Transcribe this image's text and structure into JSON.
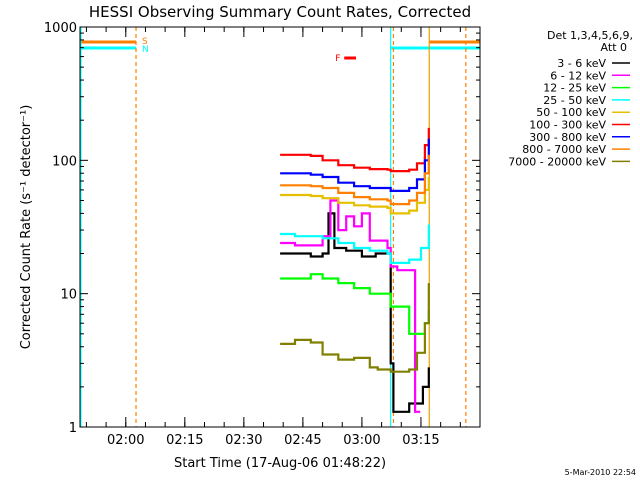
{
  "chart_data": {
    "type": "line",
    "title": "HESSI Observing Summary Count Rates, Corrected",
    "xlabel": "Start Time (17-Aug-06 01:48:22)",
    "ylabel": "Corrected Count Rate (s⁻¹ detector⁻¹)",
    "ylog": true,
    "ylim": [
      1,
      1000
    ],
    "xlim_minutes": [
      108.37,
      210.0
    ],
    "x_ticks": [
      {
        "value": 120,
        "label": "02:00"
      },
      {
        "value": 135,
        "label": "02:15"
      },
      {
        "value": 150,
        "label": "02:30"
      },
      {
        "value": 165,
        "label": "02:45"
      },
      {
        "value": 180,
        "label": "03:00"
      },
      {
        "value": 195,
        "label": "03:15"
      }
    ],
    "y_ticks": [
      {
        "value": 1,
        "label": "1"
      },
      {
        "value": 10,
        "label": "10"
      },
      {
        "value": 100,
        "label": "100"
      },
      {
        "value": 1000,
        "label": "1000"
      }
    ],
    "legend": {
      "title_lines": [
        "Det 1,3,4,5,6,9,",
        "Att 0"
      ],
      "placement": "right"
    },
    "series": [
      {
        "name": "3 - 6 keV",
        "color": "#000000",
        "x": [
          159.2,
          163,
          167,
          170,
          171.5,
          173,
          176,
          180,
          183.5,
          186.5,
          187.3,
          188,
          192,
          195.5,
          197
        ],
        "y": [
          20,
          20,
          19,
          20,
          40,
          22,
          21,
          19,
          20,
          20,
          3,
          1.3,
          1.5,
          2,
          2.8
        ]
      },
      {
        "name": "6 - 12 keV",
        "color": "#ff00ff",
        "x": [
          159.2,
          163,
          167,
          170,
          172,
          174,
          176,
          178,
          180,
          182,
          184,
          186.5,
          187.3,
          189,
          192,
          193.5,
          194.8
        ],
        "y": [
          24,
          23,
          23,
          27,
          50,
          30,
          38,
          32,
          40,
          25,
          25,
          22,
          16,
          15,
          15,
          1.3,
          1.3
        ]
      },
      {
        "name": "12 - 25 keV",
        "color": "#00ff00",
        "x": [
          159.2,
          163,
          167,
          170,
          174,
          178,
          182,
          186.5,
          187.3,
          189,
          192,
          194,
          196,
          197
        ],
        "y": [
          13,
          13,
          14,
          13,
          12,
          11,
          10,
          10,
          8,
          8,
          5,
          5,
          6,
          7.5
        ]
      },
      {
        "name": "25 - 50 keV",
        "color": "#00ffff",
        "x": [
          159.2,
          163,
          167,
          170,
          174,
          178,
          182,
          186.5,
          187.3,
          189,
          192,
          195,
          197
        ],
        "y": [
          28,
          27,
          27,
          26,
          24,
          22,
          21,
          20,
          17,
          17,
          18,
          22,
          33
        ]
      },
      {
        "name": "50 - 100 keV",
        "color": "#e6c000",
        "x": [
          159.2,
          163,
          167,
          170,
          174,
          178,
          182,
          186.5,
          187.3,
          189,
          192,
          194,
          196,
          197
        ],
        "y": [
          55,
          55,
          54,
          52,
          48,
          46,
          45,
          44,
          40,
          40,
          42,
          48,
          60,
          75
        ]
      },
      {
        "name": "100 - 300 keV",
        "color": "#ff0000",
        "x": [
          159.2,
          163,
          167,
          170,
          174,
          178,
          182,
          186.5,
          187.3,
          189,
          192,
          194,
          196,
          197
        ],
        "y": [
          110,
          110,
          108,
          100,
          92,
          88,
          86,
          85,
          83,
          83,
          85,
          95,
          130,
          175
        ]
      },
      {
        "name": "300 - 800 keV",
        "color": "#0000ff",
        "x": [
          159.2,
          163,
          167,
          170,
          174,
          178,
          182,
          186.5,
          187.3,
          189,
          192,
          194,
          196,
          197
        ],
        "y": [
          80,
          80,
          78,
          75,
          68,
          64,
          62,
          62,
          59,
          59,
          62,
          72,
          100,
          145
        ]
      },
      {
        "name": "800 - 7000 keV",
        "color": "#ff8000",
        "x": [
          159.2,
          163,
          167,
          170,
          174,
          178,
          182,
          186.5,
          187.3,
          189,
          192,
          194,
          196,
          197
        ],
        "y": [
          65,
          65,
          64,
          62,
          57,
          53,
          51,
          50,
          47,
          47,
          50,
          57,
          80,
          110
        ]
      },
      {
        "name": "7000 - 20000 keV",
        "color": "#808000",
        "x": [
          159.2,
          163,
          167,
          170,
          174,
          178,
          182,
          184,
          186.5,
          187.3,
          189,
          192,
          194,
          196,
          197
        ],
        "y": [
          4.2,
          4.5,
          4.3,
          3.5,
          3.2,
          3.3,
          2.8,
          2.7,
          2.7,
          2.6,
          2.6,
          2.7,
          3.6,
          6,
          12
        ]
      }
    ],
    "markers": {
      "saa_label": "S",
      "night_label": "N",
      "flare_label": "F",
      "saa_color": "#ff8000",
      "night_color": "#00ffff",
      "flare_color": "#ff0000",
      "saa_intervals": [
        [
          108.37,
          122.6
        ],
        [
          197.1,
          210.0
        ]
      ],
      "night_intervals": [
        [
          108.37,
          122.6
        ],
        [
          187.3,
          210.0
        ]
      ],
      "flare_interval": [
        175.5,
        178.5
      ],
      "vertical_lines": [
        {
          "x": 122.6,
          "color": "#ff8000",
          "style": "dashed"
        },
        {
          "x": 187.3,
          "color": "#00ffff",
          "style": "solid"
        },
        {
          "x": 188.0,
          "color": "#ff8000",
          "style": "dashed"
        },
        {
          "x": 197.1,
          "color": "#e6a000",
          "style": "solid"
        },
        {
          "x": 206.4,
          "color": "#ff8000",
          "style": "dashed"
        },
        {
          "x": 108.6,
          "color": "#00ffff",
          "style": "solid"
        }
      ]
    },
    "footer_timestamp": "5-Mar-2010 22:54"
  }
}
